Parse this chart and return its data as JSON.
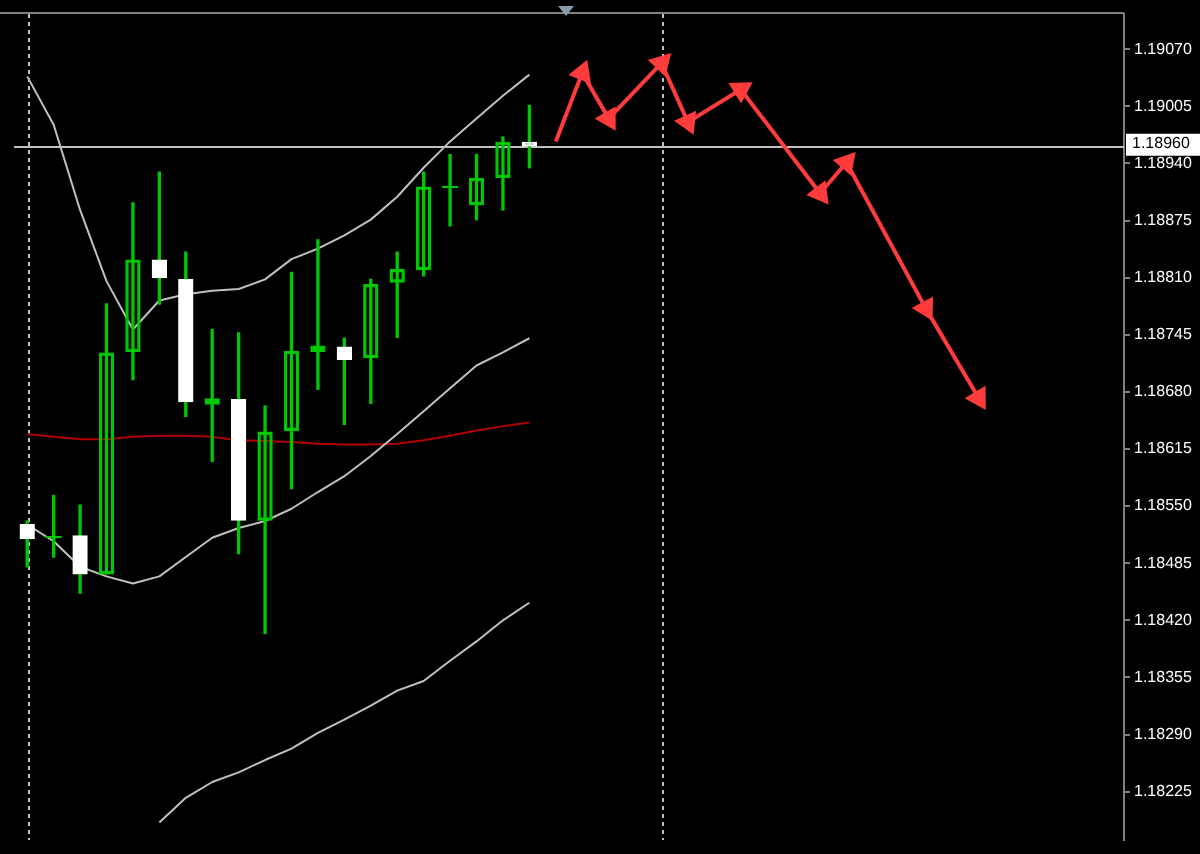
{
  "chart_data": {
    "type": "candlestick",
    "categories": [
      null,
      null,
      null,
      null,
      null,
      null,
      null,
      null,
      null,
      null,
      null,
      null,
      null,
      null,
      null,
      null,
      null,
      null,
      null,
      null,
      null,
      null,
      null,
      null,
      null,
      null,
      null,
      null,
      null,
      null,
      null,
      null,
      null,
      null,
      null,
      null,
      null,
      null,
      null,
      null,
      null,
      null
    ],
    "ohlc": [
      [
        1.18529,
        1.18533,
        1.18481,
        1.18513
      ],
      [
        1.18516,
        1.18562,
        1.18492,
        1.18516
      ],
      [
        1.18516,
        1.18551,
        1.18451,
        1.18473
      ],
      [
        1.18473,
        1.1878,
        1.18473,
        1.18724
      ],
      [
        1.18726,
        1.18895,
        1.18694,
        1.1883
      ],
      [
        1.1883,
        1.1893,
        1.1878,
        1.1881
      ],
      [
        1.18808,
        1.18839,
        1.18652,
        1.18669
      ],
      [
        1.18666,
        1.18751,
        1.18601,
        1.18672
      ],
      [
        1.18671,
        1.18747,
        1.18496,
        1.18534
      ],
      [
        1.18534,
        1.18664,
        1.18405,
        1.18634
      ],
      [
        1.18636,
        1.18816,
        1.1857,
        1.18726
      ],
      [
        1.18726,
        1.18853,
        1.18683,
        1.18732
      ],
      [
        1.18731,
        1.18741,
        1.18643,
        1.18717
      ],
      [
        1.18719,
        1.18808,
        1.18667,
        1.18802
      ],
      [
        1.18805,
        1.18839,
        1.18742,
        1.18819
      ],
      [
        1.18819,
        1.1893,
        1.18812,
        1.18913
      ],
      [
        1.18915,
        1.1895,
        1.18869,
        1.18915
      ],
      [
        1.18893,
        1.1895,
        1.18876,
        1.18923
      ],
      [
        1.18924,
        1.1897,
        1.18887,
        1.18964
      ],
      [
        1.18964,
        1.19006,
        1.18935,
        1.1896
      ],
      null,
      null,
      null,
      null,
      null,
      null,
      null,
      null,
      null,
      null,
      null,
      null,
      null,
      null,
      null,
      null,
      null,
      null,
      null,
      null,
      null,
      null
    ],
    "color": "#00c800",
    "colors": [
      "#ffffff",
      "#00c800",
      "#ffffff",
      "#00c800",
      "#00c800",
      "#ffffff",
      "#ffffff",
      "#00c800",
      "#ffffff",
      "#00c800",
      "#00c800",
      "#00c800",
      "#ffffff",
      "#00c800",
      "#00c800",
      "#00c800",
      "#00c800",
      "#00c800",
      "#00c800",
      "#ffffff",
      null,
      null,
      null,
      null,
      null,
      null,
      null,
      null,
      null,
      null,
      null,
      null,
      null,
      null,
      null,
      null,
      null,
      null,
      null,
      null,
      null,
      null
    ],
    "series": [
      {
        "type": "line",
        "color": "#c0c0c0",
        "values": [
          1.19039,
          1.18984,
          1.18887,
          1.18806,
          1.18751,
          1.18784,
          1.18791,
          1.18795,
          1.18797,
          1.18808,
          1.18831,
          1.18843,
          1.18858,
          1.18876,
          1.18902,
          1.18935,
          1.18965,
          1.18991,
          1.19017,
          1.19041,
          null,
          null,
          null,
          null,
          null,
          null,
          null,
          null,
          null,
          null,
          null,
          null,
          null,
          null,
          null,
          null,
          null,
          null,
          null,
          null,
          null,
          null
        ]
      },
      {
        "type": "line",
        "color": "#c0c0c0",
        "values": [
          1.18529,
          1.1851,
          1.18481,
          1.1847,
          1.18462,
          1.1847,
          1.18492,
          1.18514,
          1.18525,
          1.18533,
          1.18547,
          1.18566,
          1.18584,
          1.18607,
          1.18632,
          1.18658,
          1.18684,
          1.1871,
          1.18725,
          1.18741,
          null,
          null,
          null,
          null,
          null,
          null,
          null,
          null,
          null,
          null,
          null,
          null,
          null,
          null,
          null,
          null,
          null,
          null,
          null,
          null,
          null,
          null
        ]
      },
      {
        "type": "line",
        "color": "#c0c0c0",
        "values": [
          null,
          null,
          null,
          null,
          null,
          1.1819,
          1.18218,
          1.18236,
          1.18247,
          1.18261,
          1.18274,
          1.18292,
          1.18307,
          1.18323,
          1.1834,
          1.18351,
          1.18374,
          1.18396,
          1.1842,
          1.1844,
          null,
          null,
          null,
          null,
          null,
          null,
          null,
          null,
          null,
          null,
          null,
          null,
          null,
          null,
          null,
          null,
          null,
          null,
          null,
          null,
          null,
          null
        ]
      },
      {
        "type": "line",
        "color": "#b00000",
        "values": [
          1.18632,
          1.18629,
          1.18626,
          1.18626,
          1.18629,
          1.1863,
          1.1863,
          1.18629,
          1.18625,
          1.18624,
          1.18623,
          1.18621,
          1.1862,
          1.1862,
          1.18621,
          1.18625,
          1.1863,
          1.18636,
          1.18641,
          1.18645,
          null,
          null,
          null,
          null,
          null,
          null,
          null,
          null,
          null,
          null,
          null,
          null,
          null,
          null,
          null,
          null,
          null,
          null,
          null,
          null,
          null,
          null
        ]
      },
      {
        "type": "line",
        "color": "#ff3b3b",
        "marker": "triangle",
        "values": [
          null,
          null,
          null,
          null,
          null,
          null,
          null,
          null,
          null,
          null,
          null,
          null,
          null,
          null,
          null,
          null,
          null,
          null,
          null,
          null,
          1.18965,
          1.19043,
          1.18991,
          null,
          1.19054,
          1.18987,
          null,
          1.19024,
          null,
          null,
          1.18906,
          1.18941,
          null,
          null,
          1.18775,
          null,
          1.18673,
          null,
          null,
          null,
          null,
          null
        ]
      }
    ],
    "ylim": [
      1.1817,
      1.1911
    ],
    "yticks": [
      {
        "value": 1.1907,
        "label": "1.19070"
      },
      {
        "value": 1.19005,
        "label": "1.19005"
      },
      {
        "value": 1.1894,
        "label": "1.18940"
      },
      {
        "value": 1.18875,
        "label": "1.18875"
      },
      {
        "value": 1.1881,
        "label": "1.18810"
      },
      {
        "value": 1.18745,
        "label": "1.18745"
      },
      {
        "value": 1.1868,
        "label": "1.18680"
      },
      {
        "value": 1.18615,
        "label": "1.18615"
      },
      {
        "value": 1.1855,
        "label": "1.18550"
      },
      {
        "value": 1.18485,
        "label": "1.18485"
      },
      {
        "value": 1.1842,
        "label": "1.18420"
      },
      {
        "value": 1.18355,
        "label": "1.18355"
      },
      {
        "value": 1.1829,
        "label": "1.18290"
      },
      {
        "value": 1.18225,
        "label": "1.18225"
      }
    ],
    "tick_labels": "y",
    "ref_lines": [
      {
        "axis": "y",
        "value": 1.1896,
        "label": "1.18960",
        "color": "#c0c0c0"
      }
    ],
    "legend": false,
    "grid": false
  }
}
